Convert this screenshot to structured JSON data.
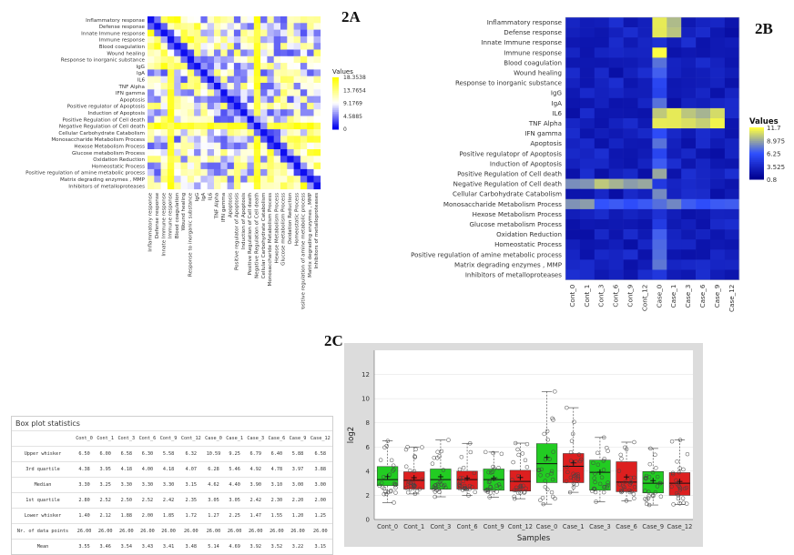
{
  "labels": {
    "a": "2A",
    "b": "2B",
    "c": "2C"
  },
  "heatmap_a": {
    "type": "heatmap",
    "row_labels": [
      "Inflammatory response",
      "Defense response",
      "Innate Immune response",
      "Immune response",
      "Blood coagulation",
      "Wound healing",
      "Response to inorganic substance",
      "IgG",
      "IgA",
      "IL6",
      "TNF Alpha",
      "IFN gamma",
      "Apoptosis",
      "Positive regulator of Apoptosis",
      "Induction of Apoptosis",
      "Positive Regulation of Cell death",
      "Negative Regulation of Cell death",
      "Cellular Carbohydrate Catabolism",
      "Monosaccharide Metabolism Process",
      "Hexose Metabolism Process",
      "Glucose metabolism Process",
      "Oxidation Reduction",
      "Homeostatic Process",
      "Positive regulation of amine metabolic process",
      "Matrix degrading enzymes , MMP",
      "Inhibitors of metalloproteases"
    ],
    "legend_title": "Values",
    "legend_ticks": [
      "18.3538",
      "13.7654",
      "9.1769",
      "4.5885",
      "0"
    ],
    "scale_min": 0,
    "scale_max": 18.3538,
    "colors": {
      "low": "#0000ee",
      "mid": "#ffffff",
      "high": "#ffff00"
    }
  },
  "heatmap_b": {
    "type": "heatmap",
    "row_labels": [
      "Inflammatory response",
      "Defense response",
      "Innate Immune response",
      "Immune response",
      "Blood coagulation",
      "Wound healing",
      "Response to inorganic substance",
      "IgG",
      "IgA",
      "IL6",
      "TNF Alpha",
      "IFN gamma",
      "Apoptosis",
      "Positive regulatopr of Apoptosis",
      "Induction of Apoptosis",
      "Positive Regulation of Cell death",
      "Negative Regulation of Cell death",
      "Cellular Carbohydrate Catabolism",
      "Monosaccharide Metabolism Process",
      "Hexose Metabolism Process",
      "Glucose metabolism Process",
      "Oxidation Reduction",
      "Homeostatic Process",
      "Positive regulation of amine metabolic process",
      "Matrix degrading enzymes , MMP",
      "Inhibitors of metalloproteases"
    ],
    "col_labels": [
      "Cont_0",
      "Cont_1",
      "Cont_3",
      "Cont_6",
      "Cont_9",
      "Cont_12",
      "Case_0",
      "Case_1",
      "Case_3",
      "Case_6",
      "Case_9",
      "Case_12"
    ],
    "legend_title": "Values",
    "legend_ticks": [
      "11.7",
      "8.975",
      "6.25",
      "3.525",
      "0.8"
    ],
    "scale_min": 0.8,
    "scale_max": 11.7,
    "colors": {
      "low": "#000090",
      "mid": "#3050ff",
      "high": "#ffff40"
    }
  },
  "chart_data": {
    "type": "box",
    "categories": [
      "Cont_0",
      "Cont_1",
      "Cont_3",
      "Cont_6",
      "Cont_9",
      "Cont_12",
      "Case_0",
      "Case_1",
      "Case_3",
      "Case_6",
      "Case_9",
      "Case_12"
    ],
    "upper_whisker": [
      6.5,
      6.0,
      6.58,
      6.3,
      5.58,
      6.32,
      10.59,
      9.25,
      6.79,
      6.4,
      5.88,
      6.58
    ],
    "q3": [
      4.38,
      3.95,
      4.18,
      4.0,
      4.18,
      4.07,
      6.28,
      5.46,
      4.92,
      4.78,
      3.97,
      3.88
    ],
    "median": [
      3.3,
      3.25,
      3.3,
      3.3,
      3.3,
      3.15,
      4.62,
      4.4,
      3.9,
      3.1,
      3.0,
      3.0
    ],
    "q1": [
      2.8,
      2.52,
      2.5,
      2.52,
      2.42,
      2.35,
      3.05,
      3.05,
      2.42,
      2.3,
      2.2,
      2.0
    ],
    "lower_whisker": [
      1.4,
      2.12,
      1.88,
      2.0,
      1.85,
      1.72,
      1.27,
      2.25,
      1.47,
      1.55,
      1.2,
      1.25
    ],
    "n": [
      "26.00",
      "26.00",
      "26.00",
      "26.00",
      "26.00",
      "26.00",
      "26.00",
      "26.00",
      "26.00",
      "26.00",
      "26.00",
      "26.00"
    ],
    "mean": [
      3.55,
      3.46,
      3.54,
      3.43,
      3.41,
      3.48,
      5.14,
      4.69,
      3.92,
      3.52,
      3.22,
      3.15
    ],
    "box_colors": [
      "#22cc22",
      "#dd1f1f",
      "#22cc22",
      "#dd1f1f",
      "#22cc22",
      "#dd1f1f",
      "#22cc22",
      "#dd1f1f",
      "#22cc22",
      "#dd1f1f",
      "#22cc22",
      "#dd1f1f"
    ],
    "xlabel": "Samples",
    "ylabel": "log2",
    "ylim": [
      0,
      14
    ],
    "yticks": [
      0,
      2,
      4,
      6,
      8,
      10,
      12
    ],
    "grid": true
  },
  "table": {
    "title": "Box plot statistics",
    "row_labels": [
      "Upper whisker",
      "3rd quartile",
      "Median",
      "1st quartile",
      "Lower whisker",
      "Nr. of data points",
      "Mean"
    ],
    "value_format": 2
  }
}
